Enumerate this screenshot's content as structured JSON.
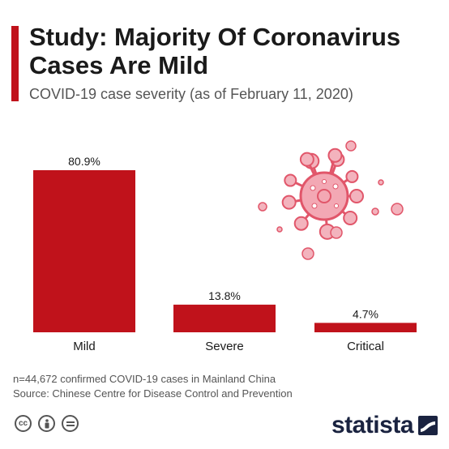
{
  "header": {
    "title": "Study: Majority Of Coronavirus Cases Are Mild",
    "subtitle": "COVID-19 case severity (as of February 11, 2020)"
  },
  "colors": {
    "accent": "#c0121b",
    "bar": "#c0121b",
    "virus": "#e1566a",
    "text": "#1a1a1a",
    "muted": "#555555"
  },
  "chart_data": {
    "type": "bar",
    "title": "Study: Majority Of Coronavirus Cases Are Mild",
    "subtitle": "COVID-19 case severity (as of February 11, 2020)",
    "categories": [
      "Mild",
      "Severe",
      "Critical"
    ],
    "values": [
      80.9,
      13.8,
      4.7
    ],
    "value_labels": [
      "80.9%",
      "13.8%",
      "4.7%"
    ],
    "unit": "%",
    "ylim": [
      0,
      100
    ],
    "grid": false,
    "legend": "none",
    "decoration": "virus-illustration"
  },
  "footer": {
    "note": "n=44,672 confirmed COVID-19 cases in Mainland China",
    "source": "Source: Chinese Centre for Disease Control and Prevention",
    "license_icons": [
      "cc-icon",
      "attribution-icon",
      "no-derivatives-icon"
    ],
    "brand": "statista"
  }
}
